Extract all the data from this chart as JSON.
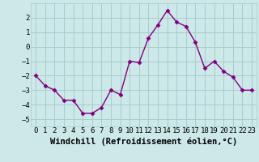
{
  "x": [
    0,
    1,
    2,
    3,
    4,
    5,
    6,
    7,
    8,
    9,
    10,
    11,
    12,
    13,
    14,
    15,
    16,
    17,
    18,
    19,
    20,
    21,
    22,
    23
  ],
  "y": [
    -2.0,
    -2.7,
    -3.0,
    -3.7,
    -3.7,
    -4.6,
    -4.6,
    -4.2,
    -3.0,
    -3.3,
    -1.0,
    -1.1,
    0.6,
    1.5,
    2.5,
    1.7,
    1.4,
    0.3,
    -1.5,
    -1.0,
    -1.7,
    -2.1,
    -3.0,
    -3.0
  ],
  "line_color": "#800080",
  "marker": "D",
  "marker_size": 2.5,
  "bg_color": "#cce8e8",
  "grid_color": "#aacccc",
  "xlabel": "Windchill (Refroidissement éolien,°C)",
  "xlim": [
    -0.5,
    23.5
  ],
  "ylim": [
    -5.5,
    3.0
  ],
  "yticks": [
    -5,
    -4,
    -3,
    -2,
    -1,
    0,
    1,
    2
  ],
  "xticks": [
    0,
    1,
    2,
    3,
    4,
    5,
    6,
    7,
    8,
    9,
    10,
    11,
    12,
    13,
    14,
    15,
    16,
    17,
    18,
    19,
    20,
    21,
    22,
    23
  ],
  "tick_fontsize": 6.5,
  "xlabel_fontsize": 7.5,
  "line_width": 1.0
}
